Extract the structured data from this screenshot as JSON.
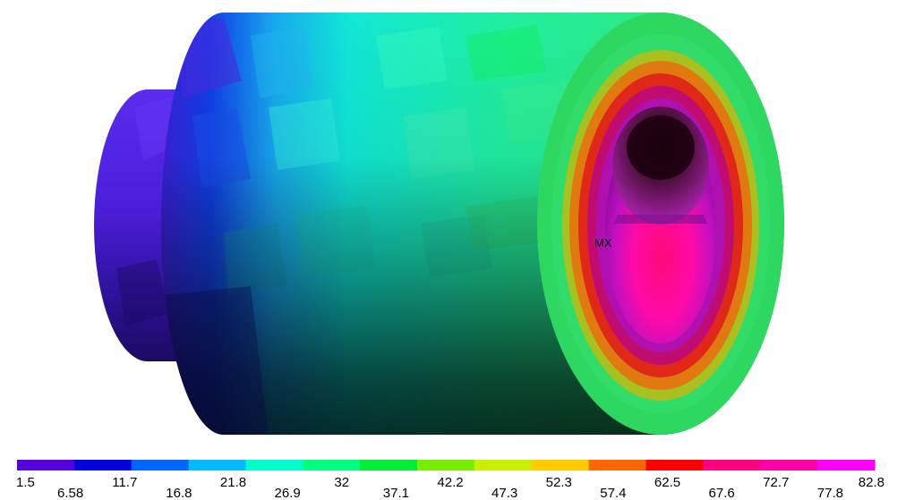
{
  "plot": {
    "max_marker_label": "MX"
  },
  "legend": {
    "colors": [
      "#5500dd",
      "#0000dd",
      "#0066ff",
      "#00bbff",
      "#00ffcc",
      "#00ff80",
      "#00ee33",
      "#77ee00",
      "#ccee00",
      "#ffcc00",
      "#ff6600",
      "#ff0000",
      "#ff0080",
      "#ff00aa",
      "#ff00ff"
    ],
    "labels": [
      "1.5",
      "6.58",
      "11.7",
      "16.8",
      "21.8",
      "26.9",
      "32",
      "37.1",
      "42.2",
      "47.3",
      "52.3",
      "57.4",
      "62.5",
      "67.6",
      "72.7",
      "77.8",
      "82.8"
    ]
  }
}
